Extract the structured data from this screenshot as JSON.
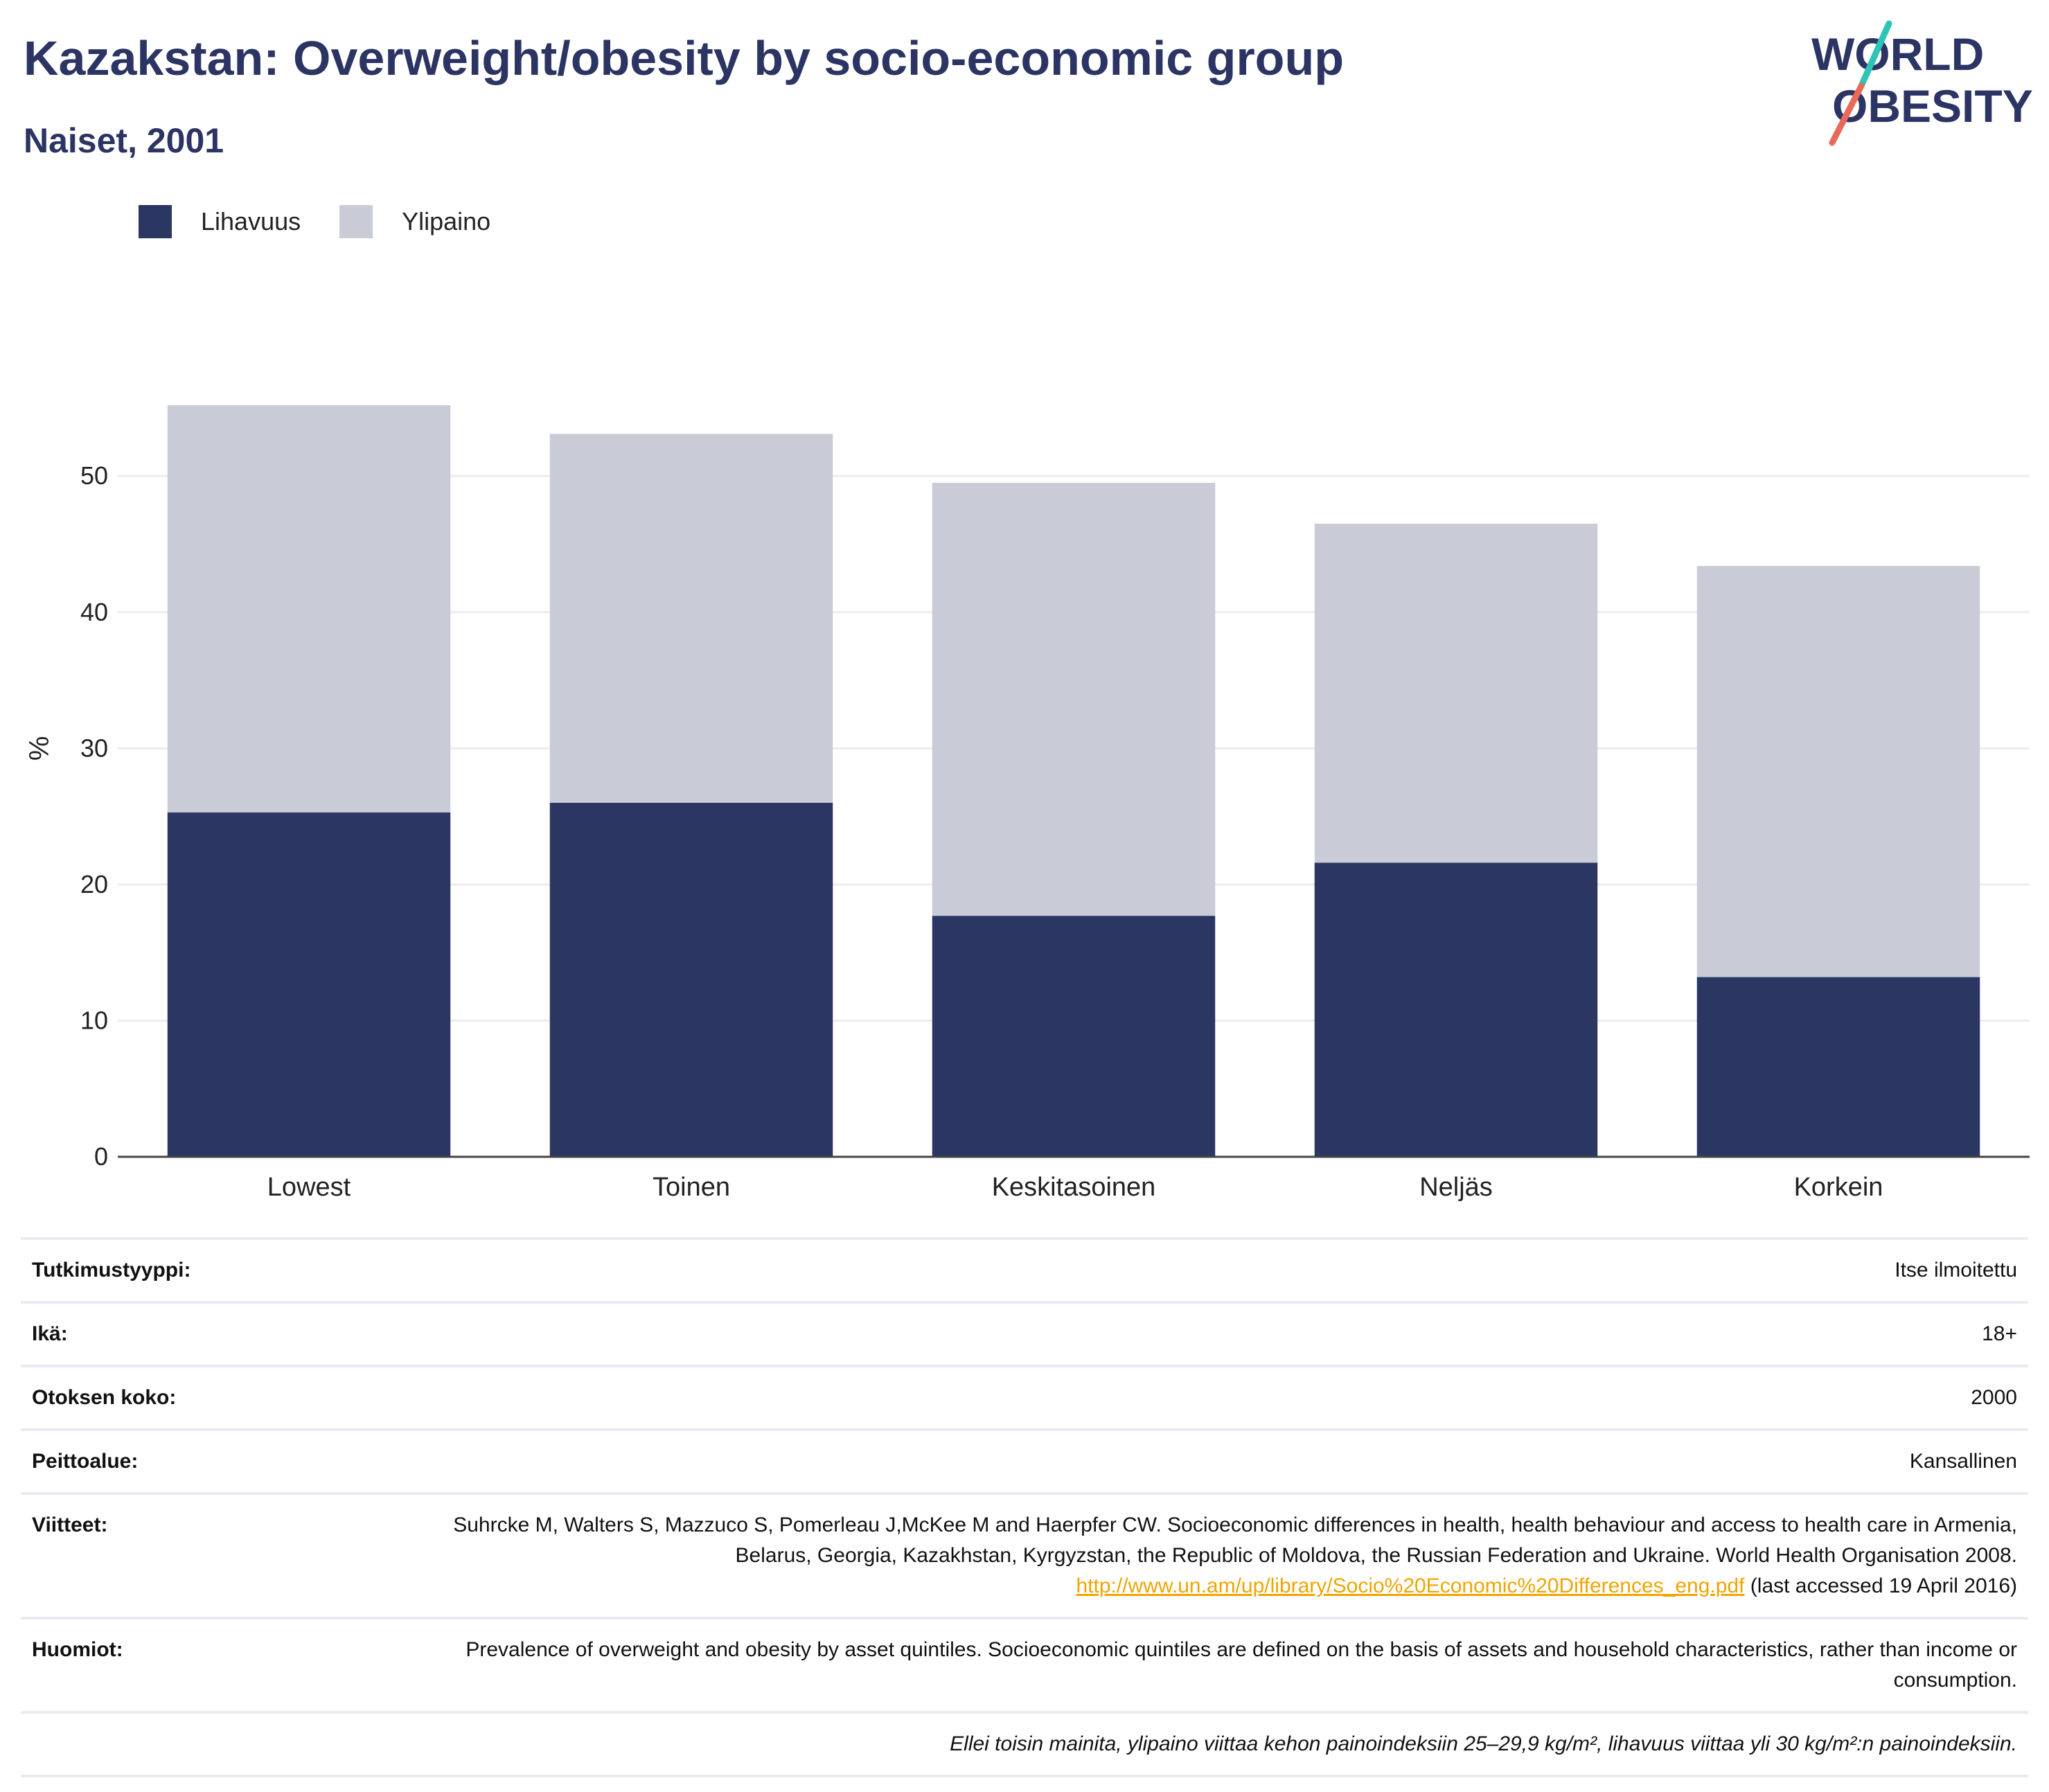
{
  "header": {
    "title": "Kazakstan: Overweight/obesity by socio-economic group",
    "subtitle": "Naiset, 2001"
  },
  "logo": {
    "line1": "WORLD",
    "line2": "OBESITY",
    "colors": {
      "text": "#2b3463",
      "slash_teal": "#2ec4b6",
      "slash_coral": "#e8695a"
    }
  },
  "legend": [
    {
      "label": "Lihavuus",
      "color": "#2b3663"
    },
    {
      "label": "Ylipaino",
      "color": "#c9cbd7"
    }
  ],
  "chart_data": {
    "type": "bar",
    "stacked": true,
    "categories": [
      "Lowest",
      "Toinen",
      "Keskitasoinen",
      "Neljäs",
      "Korkein"
    ],
    "series": [
      {
        "name": "Lihavuus",
        "color": "#2b3663",
        "values": [
          25.3,
          26.0,
          17.7,
          21.6,
          13.2
        ]
      },
      {
        "name": "Ylipaino",
        "color": "#c9cbd7",
        "values": [
          29.9,
          27.1,
          31.8,
          24.9,
          30.2
        ]
      }
    ],
    "ylabel": "%",
    "ylim": [
      0,
      58
    ],
    "yticks": [
      0,
      10,
      20,
      30,
      40,
      50
    ],
    "grid": true,
    "legend_position": "top-left"
  },
  "details": [
    {
      "label": "Tutkimustyyppi:",
      "value": "Itse ilmoitettu"
    },
    {
      "label": "Ikä:",
      "value": "18+"
    },
    {
      "label": "Otoksen koko:",
      "value": "2000"
    },
    {
      "label": "Peittoalue:",
      "value": "Kansallinen"
    }
  ],
  "references": {
    "label": "Viitteet:",
    "text_before": "Suhrcke M, Walters S, Mazzuco S, Pomerleau J,McKee M and Haerpfer CW. Socioeconomic differences in health, health behaviour and access to health care in Armenia, Belarus, Georgia, Kazakhstan, Kyrgyzstan, the Republic of Moldova, the Russian Federation and Ukraine. World Health Organisation 2008. ",
    "link": "http://www.un.am/up/library/Socio%20Economic%20Differences_eng.pdf",
    "text_after": " (last accessed 19 April 2016)"
  },
  "notes": {
    "label": "Huomiot:",
    "value": "Prevalence of overweight and obesity by asset quintiles. Socioeconomic quintiles are defined on the basis of assets and household characteristics, rather than income or consumption."
  },
  "footnote": "Ellei toisin mainita, ylipaino viittaa kehon painoindeksiin 25–29,9 kg/m², lihavuus viittaa yli 30 kg/m²:n painoindeksiin."
}
